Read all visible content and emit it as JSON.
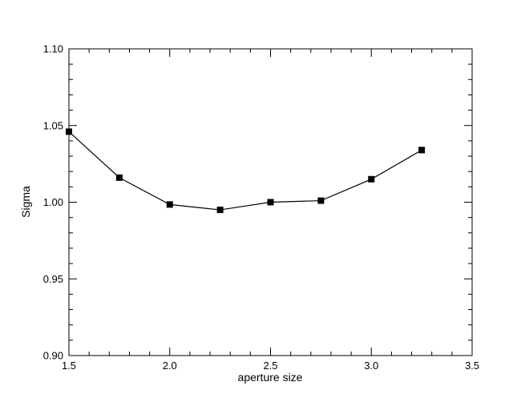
{
  "chart_data": {
    "type": "line",
    "title": "",
    "xlabel": "aperture size",
    "ylabel": "Sigma",
    "xlim": [
      1.5,
      3.5
    ],
    "ylim": [
      0.9,
      1.1
    ],
    "xticks": [
      1.5,
      2.0,
      2.5,
      3.0,
      3.5
    ],
    "xtick_labels": [
      "1.5",
      "2.0",
      "2.5",
      "3.0",
      "3.5"
    ],
    "yticks": [
      0.9,
      0.95,
      1.0,
      1.05,
      1.1
    ],
    "ytick_labels": [
      "0.90",
      "0.95",
      "1.00",
      "1.05",
      "1.10"
    ],
    "x_minor_step": 0.1,
    "y_minor_step": 0.01,
    "grid": false,
    "legend": "none",
    "marker": "square",
    "color": "#000000",
    "series": [
      {
        "x": [
          1.5,
          1.75,
          2.0,
          2.25,
          2.5,
          2.75,
          3.0,
          3.25
        ],
        "values": [
          1.046,
          1.016,
          0.9985,
          0.995,
          1.0,
          1.001,
          1.015,
          1.034
        ]
      }
    ]
  }
}
